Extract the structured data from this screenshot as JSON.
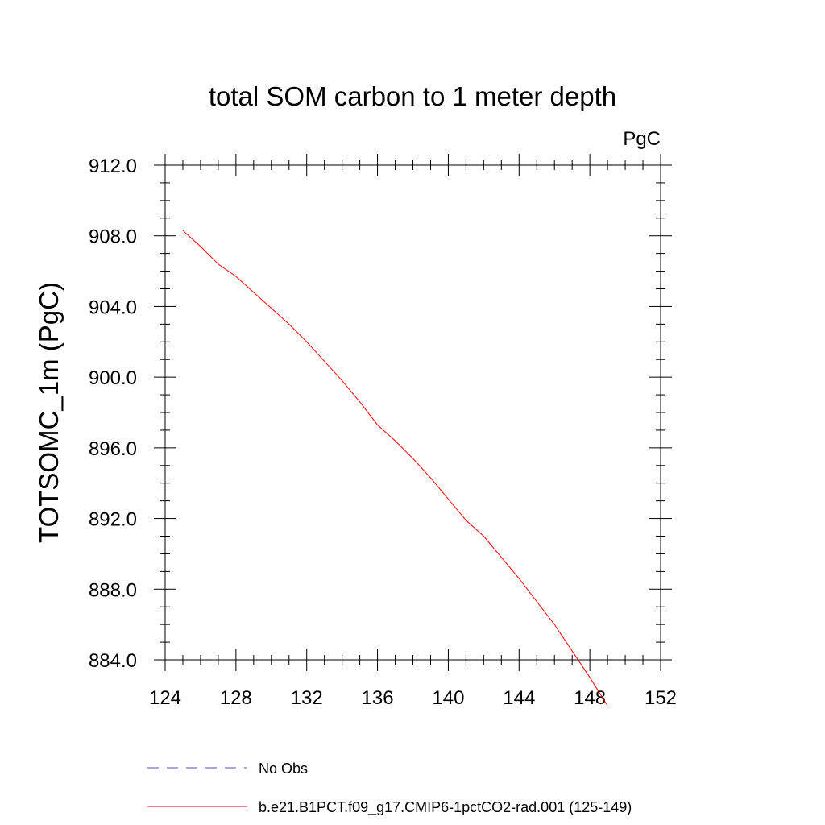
{
  "chart_data": {
    "type": "line",
    "title": "total SOM carbon to 1 meter depth",
    "units_label": "PgC",
    "ylabel": "TOTSOMC_1m  (PgC)",
    "xlabel": "",
    "xlim": [
      124,
      152
    ],
    "ylim": [
      884,
      912
    ],
    "x_ticks": [
      "124",
      "128",
      "132",
      "136",
      "140",
      "144",
      "148",
      "152"
    ],
    "x_tick_values": [
      124,
      128,
      132,
      136,
      140,
      144,
      148,
      152
    ],
    "y_ticks": [
      "884.0",
      "888.0",
      "892.0",
      "896.0",
      "900.0",
      "904.0",
      "908.0",
      "912.0"
    ],
    "y_tick_values": [
      884,
      888,
      892,
      896,
      900,
      904,
      908,
      912
    ],
    "grid": false,
    "series": [
      {
        "name": "b.e21.B1PCT.f09_g17.CMIP6-1pctCO2-rad.001 (125-149)",
        "color": "#ff0000",
        "style": "solid",
        "x": [
          125,
          126,
          127,
          128,
          129,
          130,
          131,
          132,
          133,
          134,
          135,
          136,
          137,
          138,
          139,
          140,
          141,
          142,
          143,
          144,
          145,
          146,
          147,
          148,
          149
        ],
        "y": [
          908.3,
          907.4,
          906.4,
          905.7,
          904.8,
          903.9,
          903.0,
          902.0,
          900.9,
          899.8,
          898.6,
          897.3,
          896.4,
          895.4,
          894.3,
          893.1,
          891.9,
          891.0,
          889.8,
          888.6,
          887.3,
          886.0,
          884.5,
          883.0,
          881.4
        ]
      },
      {
        "name": "No Obs",
        "color": "#4b4bc8",
        "style": "dashed",
        "x": [],
        "y": []
      }
    ],
    "legend_position": "bottom"
  }
}
